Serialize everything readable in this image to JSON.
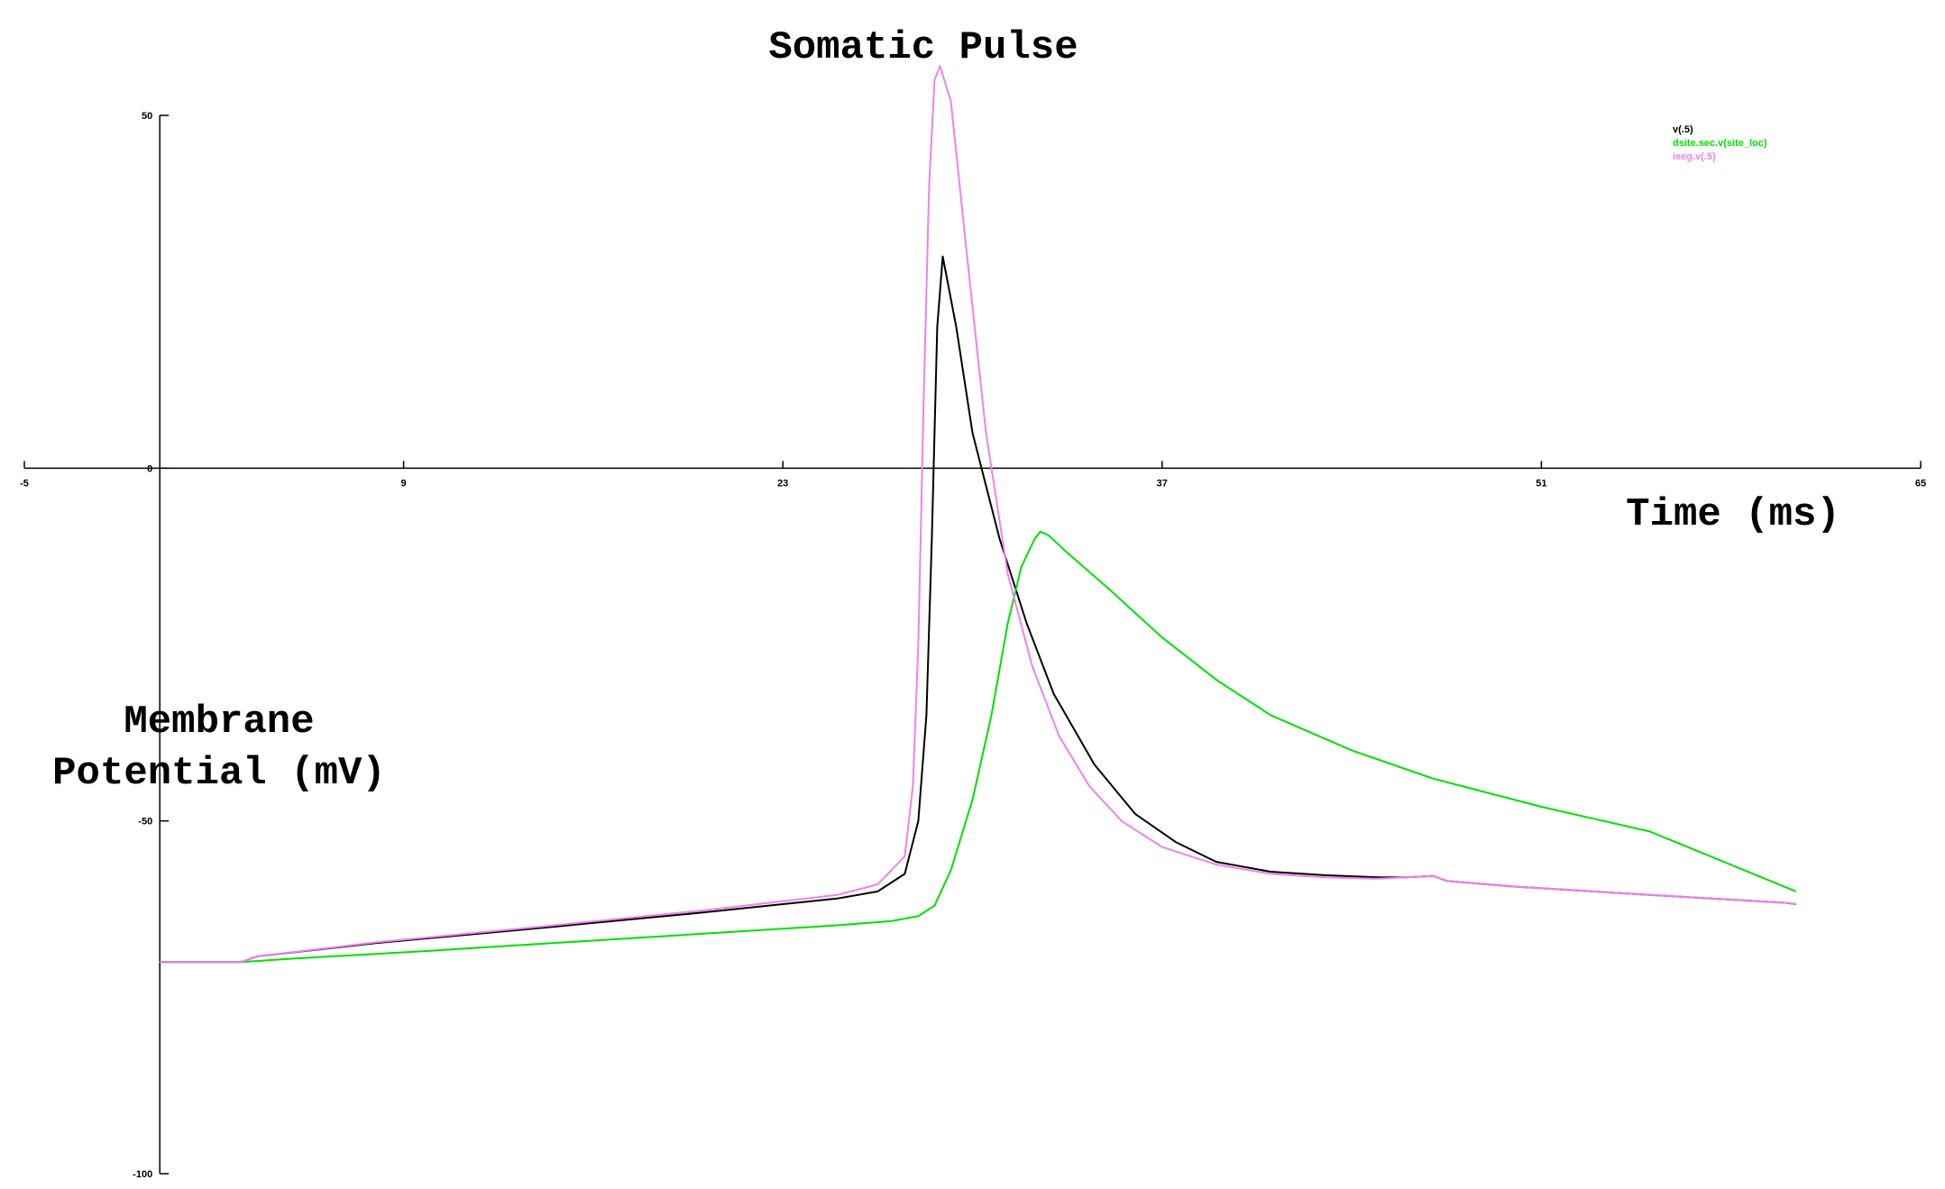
{
  "chart_data": {
    "type": "line",
    "title": "Somatic Pulse",
    "xlabel": "Time (ms)",
    "ylabel_line1": "Membrane",
    "ylabel_line2": "Potential (mV)",
    "xlim": [
      -5,
      65
    ],
    "ylim": [
      -100,
      50
    ],
    "x_ticks": [
      -5,
      9,
      23,
      37,
      51,
      65
    ],
    "y_ticks": [
      -100,
      -50,
      0,
      50
    ],
    "x_tick_labels": [
      "-5",
      "9",
      "23",
      "37",
      "51",
      "65"
    ],
    "y_tick_labels": [
      "-100",
      "-50",
      "0",
      "50"
    ],
    "legend_position": "top-right",
    "series": [
      {
        "name": "v(.5)",
        "color": "#000000",
        "points": [
          [
            0,
            -70
          ],
          [
            3,
            -70
          ],
          [
            3.6,
            -69.2
          ],
          [
            8,
            -67.3
          ],
          [
            14,
            -65.2
          ],
          [
            20,
            -63
          ],
          [
            25,
            -61
          ],
          [
            26.5,
            -60
          ],
          [
            27.5,
            -57.5
          ],
          [
            28,
            -50
          ],
          [
            28.3,
            -35
          ],
          [
            28.5,
            -10
          ],
          [
            28.7,
            20
          ],
          [
            28.9,
            30
          ],
          [
            29.4,
            20
          ],
          [
            30,
            5
          ],
          [
            31,
            -10
          ],
          [
            32,
            -22
          ],
          [
            33,
            -32
          ],
          [
            34.5,
            -42
          ],
          [
            36,
            -49
          ],
          [
            37.5,
            -53
          ],
          [
            39,
            -55.8
          ],
          [
            41,
            -57.2
          ],
          [
            43,
            -57.7
          ],
          [
            45,
            -58
          ],
          [
            46,
            -58
          ],
          [
            47,
            -57.8
          ],
          [
            47.5,
            -58.5
          ],
          [
            50,
            -59.3
          ],
          [
            55,
            -60.5
          ],
          [
            60,
            -61.6
          ],
          [
            60.4,
            -61.8
          ]
        ]
      },
      {
        "name": "dsite.sec.v(site_loc)",
        "color": "#00e000",
        "points": [
          [
            0,
            -70
          ],
          [
            3,
            -70
          ],
          [
            5,
            -69.5
          ],
          [
            10,
            -68.4
          ],
          [
            15,
            -67.2
          ],
          [
            20,
            -66
          ],
          [
            25,
            -64.8
          ],
          [
            27,
            -64.2
          ],
          [
            28,
            -63.5
          ],
          [
            28.6,
            -62
          ],
          [
            29.2,
            -57
          ],
          [
            30,
            -47
          ],
          [
            30.7,
            -35
          ],
          [
            31.3,
            -22
          ],
          [
            31.8,
            -14
          ],
          [
            32.3,
            -10
          ],
          [
            32.5,
            -9
          ],
          [
            32.8,
            -9.5
          ],
          [
            33.5,
            -12
          ],
          [
            35,
            -17
          ],
          [
            37,
            -24
          ],
          [
            39,
            -30
          ],
          [
            41,
            -35
          ],
          [
            44,
            -40
          ],
          [
            47,
            -44
          ],
          [
            51,
            -48
          ],
          [
            55,
            -51.5
          ],
          [
            60.4,
            -60
          ]
        ]
      },
      {
        "name": "iseg.v(.5)",
        "color": "#ee82ee",
        "points": [
          [
            0,
            -70
          ],
          [
            3,
            -70
          ],
          [
            3.6,
            -69.2
          ],
          [
            8,
            -67.2
          ],
          [
            14,
            -65
          ],
          [
            20,
            -62.7
          ],
          [
            25,
            -60.5
          ],
          [
            26.5,
            -59
          ],
          [
            27.5,
            -55
          ],
          [
            27.8,
            -45
          ],
          [
            28,
            -25
          ],
          [
            28.2,
            10
          ],
          [
            28.4,
            40
          ],
          [
            28.6,
            55
          ],
          [
            28.8,
            57
          ],
          [
            29.2,
            52
          ],
          [
            29.8,
            30
          ],
          [
            30.5,
            5
          ],
          [
            31.3,
            -15
          ],
          [
            32.2,
            -28
          ],
          [
            33.2,
            -38
          ],
          [
            34.3,
            -45
          ],
          [
            35.5,
            -50
          ],
          [
            37,
            -53.7
          ],
          [
            39,
            -56.2
          ],
          [
            41,
            -57.5
          ],
          [
            43,
            -58
          ],
          [
            45,
            -58.2
          ],
          [
            46,
            -58
          ],
          [
            47,
            -57.8
          ],
          [
            47.5,
            -58.5
          ],
          [
            50,
            -59.3
          ],
          [
            55,
            -60.5
          ],
          [
            60,
            -61.6
          ],
          [
            60.4,
            -61.8
          ]
        ]
      }
    ]
  }
}
